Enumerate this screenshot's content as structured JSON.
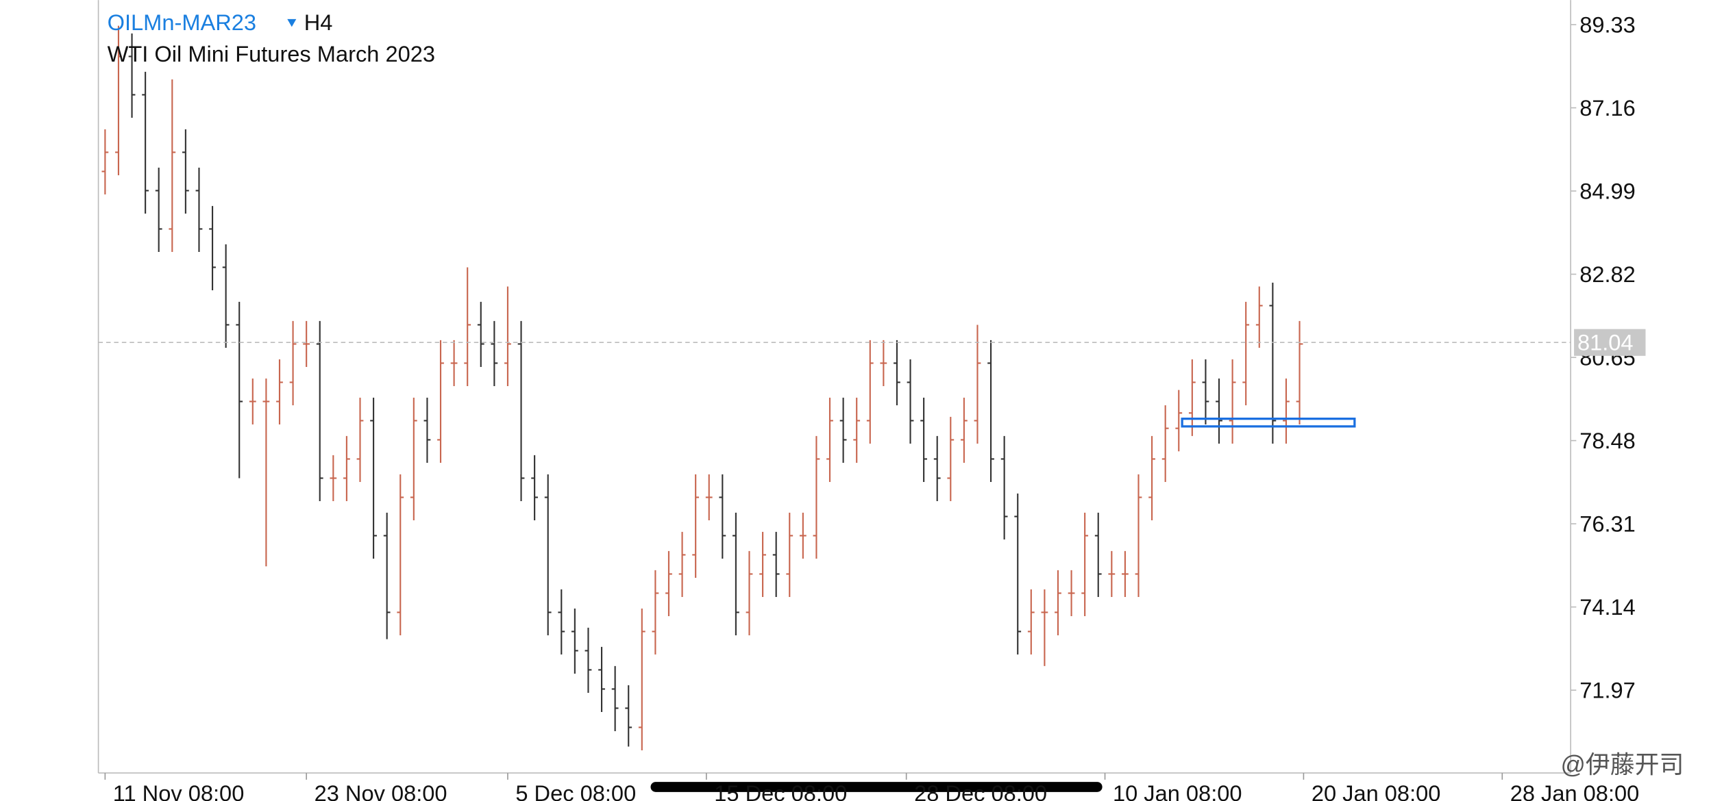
{
  "chart_data": {
    "type": "ohlc",
    "symbol": "OILMn-MAR23",
    "timeframe": "H4",
    "title": "WTI Oil Mini Futures March 2023",
    "watermark": "@伊藤开司",
    "up_color": "#c8664f",
    "down_color": "#333333",
    "open": [
      85.5,
      86,
      88.5,
      87.5,
      85,
      84,
      86,
      85,
      84,
      83,
      81.5,
      79.5,
      79.5,
      79.5,
      80,
      81,
      81,
      77.5,
      77.5,
      78,
      79,
      76,
      74,
      77,
      79,
      78.5,
      80.5,
      80.5,
      81.5,
      81,
      80.5,
      81,
      77.5,
      77,
      74,
      73.5,
      73,
      72.5,
      72,
      71.5,
      71,
      73.5,
      74.5,
      75,
      75.5,
      77,
      77,
      76,
      74,
      75,
      75.5,
      75,
      76,
      76,
      78,
      79,
      78.5,
      79,
      80.5,
      80.5,
      80,
      79,
      78,
      77.5,
      78.5,
      79,
      80.5,
      78,
      76.5,
      73.5,
      74,
      74,
      74.5,
      74.5,
      76,
      75,
      75,
      75,
      77,
      78,
      78.8,
      79.2,
      80,
      79.5,
      79,
      80,
      81.5,
      82,
      79,
      79.5
    ],
    "high": [
      86.6,
      89.3,
      89.1,
      88.1,
      85.6,
      87.9,
      86.6,
      85.6,
      84.6,
      83.6,
      82.1,
      80.1,
      80.1,
      80.6,
      81.6,
      81.6,
      81.6,
      78.1,
      78.6,
      79.6,
      79.6,
      76.6,
      77.6,
      79.6,
      79.6,
      81.1,
      81.1,
      83.0,
      82.1,
      81.6,
      82.5,
      81.6,
      78.1,
      77.6,
      74.6,
      74.1,
      73.6,
      73.1,
      72.6,
      72.1,
      74.1,
      75.1,
      75.6,
      76.1,
      77.6,
      77.6,
      77.6,
      76.6,
      75.6,
      76.1,
      76.1,
      76.6,
      76.6,
      78.6,
      79.6,
      79.6,
      79.6,
      81.1,
      81.1,
      81.1,
      80.6,
      79.6,
      78.6,
      79.1,
      79.6,
      81.5,
      81.1,
      78.6,
      77.1,
      74.6,
      74.6,
      75.1,
      75.1,
      76.6,
      76.6,
      75.6,
      75.6,
      77.6,
      78.6,
      79.4,
      79.8,
      80.6,
      80.6,
      80.1,
      80.6,
      82.1,
      82.5,
      82.6,
      80.1,
      81.6
    ],
    "low": [
      84.9,
      85.4,
      86.9,
      84.4,
      83.4,
      83.4,
      84.4,
      83.4,
      82.4,
      80.9,
      77.5,
      78.9,
      75.2,
      78.9,
      79.4,
      80.4,
      76.9,
      76.9,
      76.9,
      77.4,
      75.4,
      73.3,
      73.4,
      76.4,
      77.9,
      77.9,
      79.9,
      79.9,
      80.4,
      79.9,
      79.9,
      76.9,
      76.4,
      73.4,
      72.9,
      72.4,
      71.9,
      71.4,
      70.9,
      70.5,
      70.4,
      72.9,
      73.9,
      74.4,
      74.9,
      76.4,
      75.4,
      73.4,
      73.4,
      74.4,
      74.4,
      74.4,
      75.4,
      75.4,
      77.4,
      77.9,
      77.9,
      78.4,
      79.9,
      79.4,
      78.4,
      77.4,
      76.9,
      76.9,
      77.9,
      78.4,
      77.4,
      75.9,
      72.9,
      72.9,
      72.6,
      73.4,
      73.9,
      73.9,
      74.4,
      74.4,
      74.4,
      74.4,
      76.4,
      77.4,
      78.2,
      78.6,
      78.9,
      78.4,
      78.4,
      79.4,
      80.9,
      78.4,
      78.4,
      78.9
    ],
    "close": [
      86,
      88.5,
      87.5,
      85,
      84,
      86,
      85,
      84,
      83,
      81.5,
      79.5,
      79.5,
      79.5,
      80,
      81,
      81,
      77.5,
      77.5,
      78,
      79,
      76,
      74,
      77,
      79,
      78.5,
      80.5,
      80.5,
      81.5,
      81,
      80.5,
      81,
      77.5,
      77,
      74,
      73.5,
      73,
      72.5,
      72,
      71.5,
      71,
      73.5,
      74.5,
      75,
      75.5,
      77,
      77,
      76,
      74,
      75,
      75.5,
      75,
      76,
      76,
      78,
      79,
      78.5,
      79,
      80.5,
      80.5,
      80,
      79,
      78,
      77.5,
      78.5,
      79,
      80.5,
      78,
      76.5,
      73.5,
      74,
      74,
      74.5,
      74.5,
      76,
      75,
      75,
      75,
      77,
      78,
      78.8,
      79.2,
      80,
      79.5,
      79,
      80,
      81.5,
      82,
      79,
      79.5,
      81
    ],
    "last_price": 81.04,
    "rectangle": {
      "x0": 80.25,
      "x1": 93.1,
      "y0": 78.85,
      "y1": 79.05,
      "color": "#1a6fe0"
    },
    "xlim": [
      -0.5,
      109.2
    ],
    "ylim": [
      69.81,
      89.97
    ],
    "yticks": [
      71.97,
      74.14,
      76.31,
      78.48,
      80.65,
      82.82,
      84.99,
      87.16,
      89.33
    ],
    "xticks": [
      {
        "value": 0,
        "label": "11 Nov 08:00"
      },
      {
        "value": 15,
        "label": "23 Nov 08:00"
      },
      {
        "value": 30,
        "label": "5 Dec 08:00"
      },
      {
        "value": 44.8,
        "label": "15 Dec 08:00"
      },
      {
        "value": 59.7,
        "label": "28 Dec 08:00"
      },
      {
        "value": 74.5,
        "label": "10 Jan 08:00"
      },
      {
        "value": 89.3,
        "label": "20 Jan 08:00"
      },
      {
        "value": 104.1,
        "label": "28 Jan 08:00"
      }
    ]
  }
}
